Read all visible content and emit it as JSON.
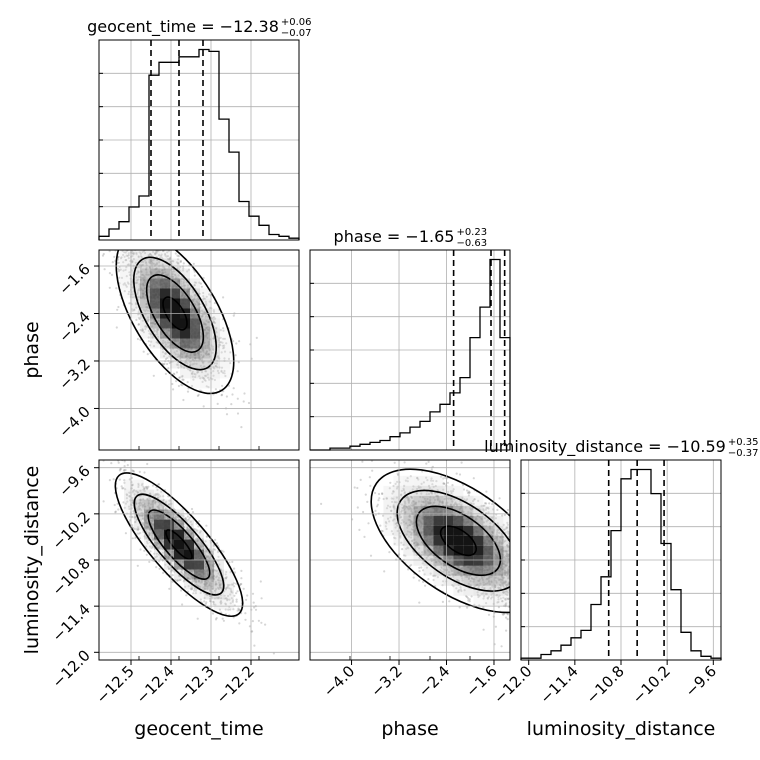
{
  "chart_data": {
    "type": "corner",
    "grid": true,
    "parameters": [
      {
        "name": "geocent_time",
        "median": -12.38,
        "plus": 0.06,
        "minus": 0.07,
        "quantiles": [
          -12.45,
          -12.38,
          -12.32
        ],
        "title": {
          "prefix": "geocent_time = −12.38",
          "sup": "+0.06",
          "sub": "−0.07"
        },
        "axis_label": "geocent_time",
        "range": [
          -12.58,
          -12.08
        ],
        "ticks": [
          -12.5,
          -12.4,
          -12.3,
          -12.2
        ],
        "tick_labels": [
          "−12.5",
          "−12.4",
          "−12.3",
          "−12.2"
        ],
        "hist": {
          "range": [
            -12.58,
            -12.08
          ],
          "density": [
            0.02,
            0.06,
            0.1,
            0.18,
            0.24,
            0.9,
            0.97,
            0.97,
            1.0,
            1.0,
            1.04,
            1.03,
            0.66,
            0.48,
            0.21,
            0.13,
            0.08,
            0.03,
            0.02,
            0.01
          ]
        }
      },
      {
        "name": "phase",
        "median": -1.65,
        "plus": 0.23,
        "minus": 0.63,
        "quantiles": [
          -2.28,
          -1.65,
          -1.42
        ],
        "title": {
          "prefix": "phase = −1.65",
          "sup": "+0.23",
          "sub": "−0.63"
        },
        "axis_label": "phase",
        "range": [
          -4.7,
          -1.33
        ],
        "ticks": [
          -4.0,
          -3.2,
          -2.4,
          -1.6
        ],
        "tick_labels": [
          "−4.0",
          "−3.2",
          "−2.4",
          "−1.6"
        ],
        "hist": {
          "range": [
            -4.7,
            -1.33
          ],
          "density": [
            0.0,
            0.0,
            0.01,
            0.01,
            0.02,
            0.03,
            0.04,
            0.05,
            0.07,
            0.09,
            0.12,
            0.15,
            0.2,
            0.24,
            0.3,
            0.38,
            0.59,
            0.75,
            1.0,
            0.59
          ]
        }
      },
      {
        "name": "luminosity_distance",
        "median": -10.59,
        "plus": 0.35,
        "minus": 0.37,
        "quantiles": [
          -10.96,
          -10.59,
          -10.24
        ],
        "title": {
          "prefix": "luminosity_distance = −10.59",
          "sup": "+0.35",
          "sub": "−0.37"
        },
        "axis_label": "luminosity_distance",
        "range": [
          -12.1,
          -9.5
        ],
        "ticks": [
          -12.0,
          -11.4,
          -10.8,
          -10.2,
          -9.6
        ],
        "tick_labels": [
          "−12.0",
          "−11.4",
          "−10.8",
          "−10.2",
          "−9.6"
        ],
        "hist": {
          "range": [
            -12.1,
            -9.5
          ],
          "density": [
            0.01,
            0.01,
            0.03,
            0.05,
            0.08,
            0.12,
            0.16,
            0.3,
            0.45,
            0.7,
            0.98,
            1.03,
            1.03,
            0.9,
            0.63,
            0.38,
            0.15,
            0.05,
            0.02,
            0.01
          ]
        }
      }
    ],
    "pairs": [
      {
        "x": "geocent_time",
        "y": "phase",
        "mean": [
          -12.39,
          -2.4
        ],
        "sd": [
          0.06,
          0.55
        ],
        "corr": -0.6
      },
      {
        "x": "geocent_time",
        "y": "luminosity_distance",
        "mean": [
          -12.38,
          -10.6
        ],
        "sd": [
          0.065,
          0.38
        ],
        "corr": -0.82
      },
      {
        "x": "phase",
        "y": "luminosity_distance",
        "mean": [
          -2.2,
          -10.55
        ],
        "sd": [
          0.6,
          0.38
        ],
        "corr": -0.55
      }
    ]
  }
}
